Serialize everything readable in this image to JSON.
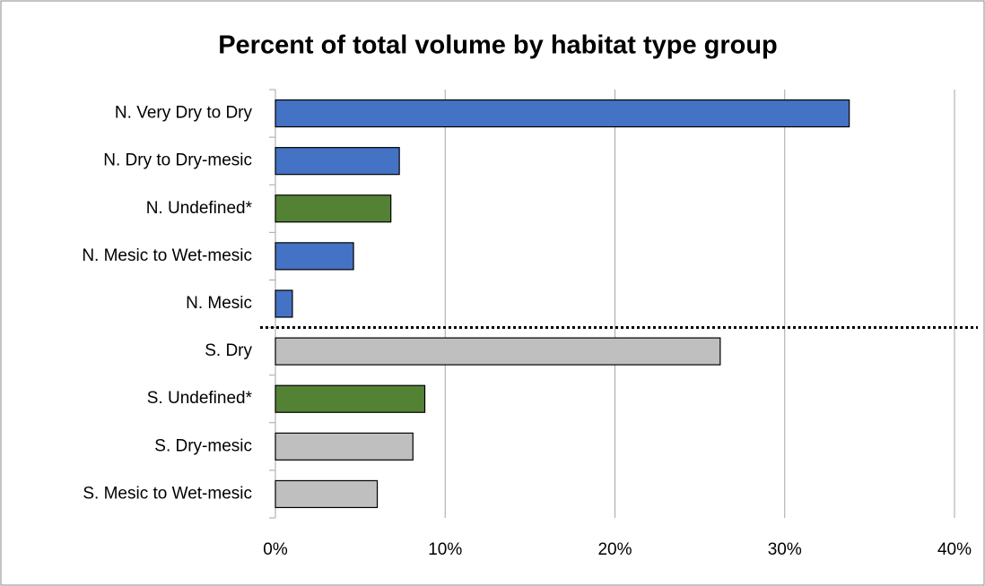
{
  "chart_data": {
    "type": "hbar",
    "title": "Percent of total volume by habitat type group",
    "categories": [
      "N. Very Dry to Dry",
      "N. Dry to Dry-mesic",
      "N. Undefined*",
      "N. Mesic to Wet-mesic",
      "N. Mesic",
      "S. Dry",
      "S. Undefined*",
      "S. Dry-mesic",
      "S. Mesic to Wet-mesic"
    ],
    "values": [
      33.8,
      7.3,
      6.8,
      4.6,
      1.0,
      26.2,
      8.8,
      8.1,
      6.0
    ],
    "colors": [
      "#4472c4",
      "#4472c4",
      "#548235",
      "#4472c4",
      "#4472c4",
      "#bfbfbf",
      "#548235",
      "#bfbfbf",
      "#bfbfbf"
    ],
    "xlim": [
      0,
      40
    ],
    "xticks": [
      {
        "value": 0,
        "label": "0%"
      },
      {
        "value": 10,
        "label": "10%"
      },
      {
        "value": 20,
        "label": "20%"
      },
      {
        "value": 30,
        "label": "30%"
      },
      {
        "value": 40,
        "label": "40%"
      }
    ],
    "grid": true
  }
}
